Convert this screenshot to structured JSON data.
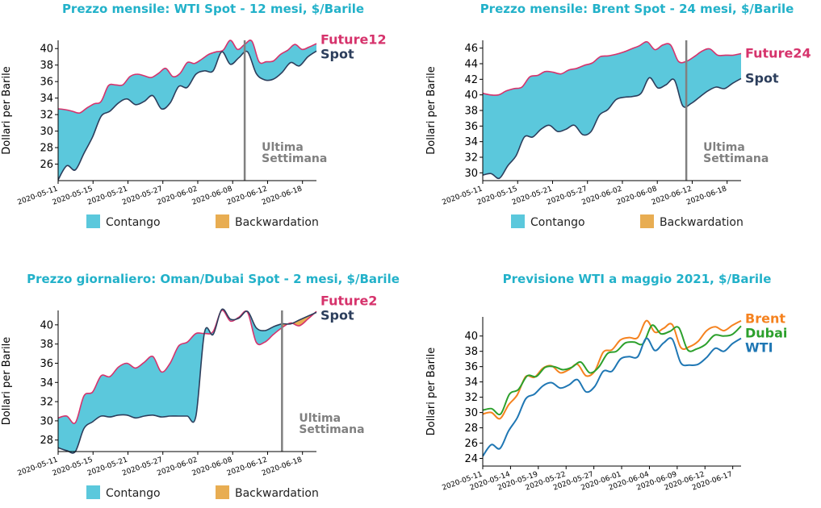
{
  "colors": {
    "title": "#22b1c9",
    "contango": "#5bc8dc",
    "backwardation": "#e8ad52",
    "future": "#d6336c",
    "spot": "#2c3e5c",
    "annotation": "#808080",
    "brent": "#f5821f",
    "dubai": "#2ca02c",
    "wti": "#1f77b4"
  },
  "chart_data": [
    {
      "type": "area",
      "title": "Prezzo mensile: WTI Spot - 12 mesi, $/Barile",
      "ylabel": "Dollari per Barile",
      "xlabel": "",
      "x_ticks": [
        "2020-05-11",
        "2020-05-15",
        "2020-05-21",
        "2020-05-27",
        "2020-06-02",
        "2020-06-08",
        "2020-06-12",
        "2020-06-18"
      ],
      "y_ticks": [
        26,
        28,
        30,
        32,
        34,
        36,
        38,
        40
      ],
      "ylim": [
        24,
        41
      ],
      "legend": {
        "position": "bottom",
        "items": [
          {
            "label": "Contango",
            "color_key": "contango"
          },
          {
            "label": "Backwardation",
            "color_key": "backwardation"
          }
        ]
      },
      "annotation": "Ultima\nSettimana",
      "vline_x": 26,
      "series": [
        {
          "name": "Future12",
          "color_key": "future",
          "values": [
            32.7,
            32.6,
            32.4,
            32.2,
            32.8,
            33.3,
            33.6,
            35.5,
            35.6,
            35.6,
            36.6,
            36.9,
            36.7,
            36.5,
            37.0,
            37.6,
            36.6,
            37.0,
            38.3,
            38.2,
            38.7,
            39.3,
            39.6,
            39.8,
            41.0,
            39.9,
            40.5,
            40.9,
            38.4,
            38.4,
            38.5,
            39.3,
            39.8,
            40.5,
            39.9,
            40.2,
            40.6
          ]
        },
        {
          "name": "Spot",
          "color_key": "spot",
          "values": [
            24.1,
            25.8,
            25.3,
            27.3,
            29.3,
            31.8,
            32.4,
            33.4,
            33.9,
            33.2,
            33.6,
            34.3,
            32.7,
            33.4,
            35.4,
            35.3,
            36.9,
            37.3,
            37.3,
            39.6,
            38.1,
            38.9,
            39.6,
            37.0,
            36.2,
            36.3,
            37.1,
            38.3,
            37.9,
            39.0,
            39.7
          ]
        }
      ]
    },
    {
      "type": "area",
      "title": "Prezzo mensile: Brent Spot - 24 mesi, $/Barile",
      "ylabel": "Dollari per Barile",
      "xlabel": "",
      "x_ticks": [
        "2020-05-11",
        "2020-05-15",
        "2020-05-21",
        "2020-05-27",
        "2020-06-02",
        "2020-06-08",
        "2020-06-12",
        "2020-06-18"
      ],
      "y_ticks": [
        30,
        32,
        34,
        36,
        38,
        40,
        42,
        44,
        46
      ],
      "ylim": [
        29,
        47
      ],
      "legend": {
        "position": "bottom",
        "items": [
          {
            "label": "Contango",
            "color_key": "contango"
          },
          {
            "label": "Backwardation",
            "color_key": "backwardation"
          }
        ]
      },
      "annotation": "Ultima\nSettimana",
      "vline_x": 26,
      "series": [
        {
          "name": "Future24",
          "color_key": "future",
          "values": [
            40.2,
            40.0,
            40.0,
            40.5,
            40.8,
            41.0,
            42.3,
            42.5,
            43.0,
            42.9,
            42.7,
            43.2,
            43.4,
            43.8,
            44.1,
            44.9,
            45.0,
            45.2,
            45.5,
            45.9,
            46.3,
            46.8,
            45.8,
            46.4,
            46.4,
            44.3,
            44.3,
            44.9,
            45.6,
            45.9,
            45.1,
            45.1,
            45.1,
            45.3
          ]
        },
        {
          "name": "Spot",
          "color_key": "spot",
          "values": [
            29.7,
            29.9,
            29.3,
            30.9,
            32.2,
            34.6,
            34.6,
            35.6,
            36.1,
            35.3,
            35.6,
            36.1,
            34.9,
            35.3,
            37.4,
            38.1,
            39.4,
            39.7,
            39.8,
            40.2,
            42.2,
            40.9,
            41.3,
            41.9,
            38.6,
            38.9,
            39.7,
            40.5,
            41.0,
            40.8,
            41.5,
            42.1
          ]
        }
      ]
    },
    {
      "type": "area",
      "title": "Prezzo giornaliero: Oman/Dubai Spot - 2 mesi, $/Barile",
      "ylabel": "Dollari per Barile",
      "xlabel": "",
      "x_ticks": [
        "2020-05-11",
        "2020-05-15",
        "2020-05-21",
        "2020-05-27",
        "2020-06-02",
        "2020-06-08",
        "2020-06-12",
        "2020-06-18"
      ],
      "y_ticks": [
        28,
        30,
        32,
        34,
        36,
        38,
        40
      ],
      "ylim": [
        26.8,
        41.5
      ],
      "legend": {
        "position": "bottom",
        "items": [
          {
            "label": "Contango",
            "color_key": "contango"
          },
          {
            "label": "Backwardation",
            "color_key": "backwardation"
          }
        ]
      },
      "annotation": "Ultima\nSettimana",
      "vline_x": 26,
      "series": [
        {
          "name": "Future2",
          "color_key": "future",
          "values": [
            30.3,
            30.5,
            29.8,
            32.6,
            33.0,
            34.7,
            34.6,
            35.6,
            36.0,
            35.5,
            36.1,
            36.7,
            35.1,
            36.0,
            37.8,
            38.2,
            39.1,
            39.1,
            39.3,
            41.5,
            40.4,
            40.8,
            41.3,
            38.2,
            38.2,
            39.0,
            39.7,
            40.2,
            39.9,
            40.6,
            41.4
          ]
        },
        {
          "name": "Spot",
          "color_key": "spot",
          "values": [
            27.2,
            26.9,
            26.8,
            29.2,
            29.9,
            30.5,
            30.4,
            30.6,
            30.6,
            30.3,
            30.5,
            30.6,
            30.4,
            30.5,
            30.5,
            30.5,
            30.5,
            39.2,
            39.0,
            41.6,
            40.6,
            40.7,
            41.4,
            39.7,
            39.4,
            39.8,
            40.1,
            40.1,
            40.5,
            40.9,
            41.3
          ]
        }
      ]
    },
    {
      "type": "line",
      "title": "Previsione WTI a maggio 2021, $/Barile",
      "ylabel": "Dollari per Barile",
      "xlabel": "",
      "x_ticks": [
        "2020-05-11",
        "2020-05-14",
        "2020-05-19",
        "2020-05-22",
        "2020-05-27",
        "2020-06-01",
        "2020-06-04",
        "2020-06-09",
        "2020-06-12",
        "2020-06-17"
      ],
      "y_ticks": [
        24,
        26,
        28,
        30,
        32,
        34,
        36,
        38,
        40
      ],
      "ylim": [
        23,
        42.5
      ],
      "series": [
        {
          "name": "Brent",
          "color_key": "brent",
          "values": [
            29.8,
            30.0,
            29.2,
            31.0,
            32.3,
            34.7,
            34.6,
            35.8,
            36.1,
            35.2,
            35.6,
            36.3,
            34.8,
            35.4,
            37.9,
            38.2,
            39.5,
            39.8,
            39.8,
            42.0,
            40.5,
            41.0,
            41.5,
            38.5,
            38.6,
            39.3,
            40.7,
            41.2,
            40.7,
            41.4,
            42.0
          ]
        },
        {
          "name": "Dubai",
          "color_key": "dubai",
          "values": [
            30.3,
            30.5,
            29.8,
            32.4,
            33.0,
            34.8,
            34.7,
            35.9,
            36.0,
            35.6,
            35.9,
            36.6,
            35.2,
            35.9,
            37.7,
            38.0,
            39.1,
            39.2,
            39.0,
            41.4,
            40.3,
            40.6,
            41.1,
            38.2,
            38.3,
            38.9,
            40.1,
            40.0,
            40.2,
            41.3
          ]
        },
        {
          "name": "WTI",
          "color_key": "wti",
          "values": [
            24.3,
            25.8,
            25.3,
            27.6,
            29.3,
            31.8,
            32.4,
            33.5,
            33.9,
            33.2,
            33.6,
            34.3,
            32.7,
            33.4,
            35.4,
            35.4,
            37.0,
            37.3,
            37.3,
            39.7,
            38.1,
            39.1,
            39.6,
            36.5,
            36.2,
            36.3,
            37.2,
            38.4,
            38.0,
            39.0,
            39.7
          ]
        }
      ]
    }
  ]
}
